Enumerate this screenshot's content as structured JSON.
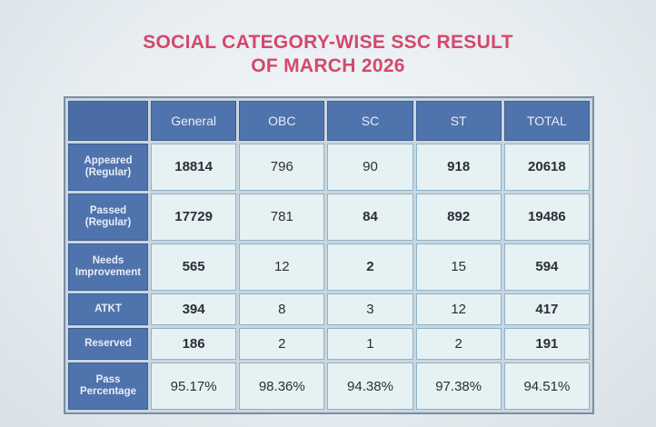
{
  "title": {
    "line1": "SOCIAL CATEGORY-WISE SSC RESULT",
    "line2": "OF MARCH 2026"
  },
  "table": {
    "columns": [
      "General",
      "OBC",
      "SC",
      "ST",
      "TOTAL"
    ],
    "rows": [
      {
        "label": "Appeared (Regular)",
        "values": [
          "18814",
          "796",
          "90",
          "918",
          "20618"
        ]
      },
      {
        "label": "Passed (Regular)",
        "values": [
          "17729",
          "781",
          "84",
          "892",
          "19486"
        ]
      },
      {
        "label": "Needs Improvement",
        "values": [
          "565",
          "12",
          "2",
          "15",
          "594"
        ]
      },
      {
        "label": "ATKT",
        "values": [
          "394",
          "8",
          "3",
          "12",
          "417"
        ]
      },
      {
        "label": "Reserved",
        "values": [
          "186",
          "2",
          "1",
          "2",
          "191"
        ]
      },
      {
        "label": "Pass Percentage",
        "values": [
          "95.17%",
          "98.36%",
          "94.38%",
          "97.38%",
          "94.51%"
        ]
      }
    ]
  },
  "colors": {
    "title": "#d4486b",
    "header_bg": "#4f73ac",
    "cell_bg": "#e6f1f3"
  }
}
